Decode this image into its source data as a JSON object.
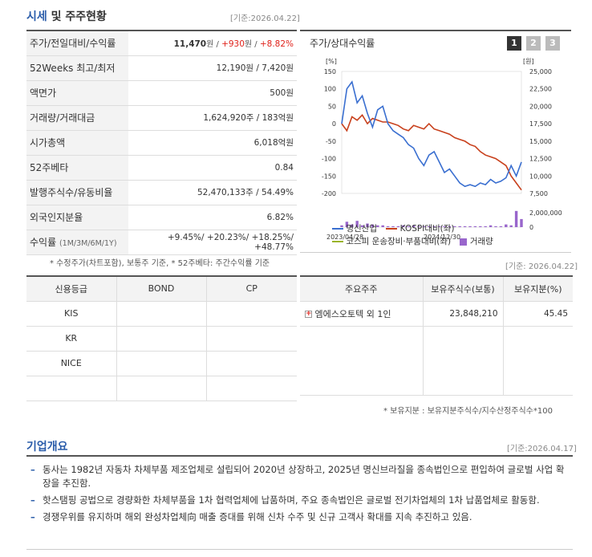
{
  "quote": {
    "title_main": "시세",
    "title_rest": " 및 주주현황",
    "date": "[기준:2026.04.22]",
    "rows": [
      {
        "label": "주가/전일대비/수익률",
        "v1": "11,470",
        "u1": "원 / ",
        "v2": "+930",
        "u2": "원 / ",
        "v3": "+8.82%"
      },
      {
        "label": "52Weeks 최고/최저",
        "value": "12,190원 / 7,420원"
      },
      {
        "label": "액면가",
        "value": "500원"
      },
      {
        "label": "거래량/거래대금",
        "value": "1,624,920주 / 183억원"
      },
      {
        "label": "시가총액",
        "value": "6,018억원"
      },
      {
        "label": "52주베타",
        "value": "0.84"
      },
      {
        "label": "발행주식수/유동비율",
        "value": "52,470,133주 / 54.49%"
      },
      {
        "label": "외국인지분율",
        "value": "6.82%"
      }
    ],
    "returns_label": "수익률",
    "returns_sub": "(1M/3M/6M/1Y)",
    "returns": "+9.45%/ +20.23%/ +18.25%/ +48.77%",
    "footnote": "* 수정주가(차트포함), 보통주 기준, * 52주베타: 주간수익률 기준"
  },
  "chart": {
    "title": "주가/상대수익률",
    "buttons": [
      "1",
      "2",
      "3"
    ],
    "left_unit": "[%]",
    "right_unit": "[원]",
    "left_ticks": [
      "150",
      "100",
      "50",
      "0",
      "-50",
      "-100",
      "-150",
      "-200"
    ],
    "right_ticks": [
      "25,000",
      "22,500",
      "20,000",
      "17,500",
      "15,000",
      "12,500",
      "10,000",
      "7,500"
    ],
    "vol_ticks": [
      "2,000,000",
      "0"
    ],
    "x_labels": [
      "2023/04/28",
      "2024/12/30"
    ],
    "legend": [
      "명신산업",
      "KOSPI대비(좌)",
      "코스피 운송장비·부품대비(좌)",
      "거래량"
    ],
    "colors": {
      "stock": "#3a6fd0",
      "kospi": "#c8401c",
      "sector": "#9ab42a",
      "volume": "#9966cc"
    }
  },
  "chart_data": {
    "type": "line",
    "x_range": [
      "2023/04/28",
      "2026/04/22"
    ],
    "ylim_left": [
      -200,
      150
    ],
    "ylim_right": [
      7500,
      25000
    ],
    "series": [
      {
        "name": "명신산업",
        "axis": "left",
        "values": [
          0,
          100,
          120,
          60,
          80,
          30,
          -10,
          40,
          50,
          0,
          -20,
          -30,
          -40,
          -60,
          -70,
          -100,
          -120,
          -90,
          -80,
          -110,
          -140,
          -130,
          -150,
          -170,
          -180,
          -175,
          -180,
          -170,
          -175,
          -160,
          -170,
          -165,
          -155,
          -120,
          -150,
          -110
        ]
      },
      {
        "name": "KOSPI대비(좌)",
        "axis": "left",
        "values": [
          0,
          -20,
          20,
          10,
          25,
          0,
          15,
          10,
          5,
          5,
          0,
          -5,
          -15,
          -20,
          -5,
          -10,
          -15,
          0,
          -15,
          -20,
          -25,
          -30,
          -40,
          -45,
          -50,
          -60,
          -65,
          -80,
          -90,
          -95,
          -100,
          -110,
          -120,
          -150,
          -170,
          -190
        ]
      }
    ],
    "volume": [
      0.2,
      0.6,
      0.3,
      0.7,
      0.2,
      0.4,
      0.3,
      0.2,
      0.2,
      0.1,
      0.1,
      0.1,
      0.2,
      0.1,
      0.2,
      0.1,
      0.1,
      0.1,
      0.1,
      0.1,
      0.1,
      0.1,
      0.1,
      0.1,
      0.1,
      0.1,
      0.1,
      0.1,
      0.1,
      0.2,
      0.1,
      0.1,
      0.3,
      0.2,
      1.8,
      0.9
    ],
    "volume_max": 2500000
  },
  "credit": {
    "headers": [
      "신용등급",
      "BOND",
      "CP"
    ],
    "rows": [
      [
        "KIS",
        "",
        ""
      ],
      [
        "KR",
        "",
        ""
      ],
      [
        "NICE",
        "",
        ""
      ],
      [
        "",
        "",
        ""
      ]
    ]
  },
  "holders": {
    "date": "[기준: 2026.04.22]",
    "headers": [
      "주요주주",
      "보유주식수(보통)",
      "보유지분(%)"
    ],
    "rows": [
      {
        "name": "엠에스오토텍 외 1인",
        "shares": "23,848,210",
        "pct": "45.45"
      }
    ],
    "footnote": "* 보유지분 : 보유지분주식수/지수산정주식수*100"
  },
  "company": {
    "title": "기업개요",
    "date": "[기준:2026.04.17]",
    "items": [
      "동사는 1982년 자동차 차체부품 제조업체로 설립되어 2020년 상장하고, 2025년 명신브라질을 종속법인으로 편입하여 글로벌 사업 확장을 추진함.",
      "핫스탬핑 공법으로 경량화한 차체부품을 1차 협력업체에 납품하며, 주요 종속법인은 글로벌 전기차업체의 1차 납품업체로 활동함.",
      "경쟁우위를 유지하며 해외 완성차업체向 매출 증대를 위해 신차 수주 및 신규 고객사 확대를 지속 추진하고 있음."
    ]
  }
}
